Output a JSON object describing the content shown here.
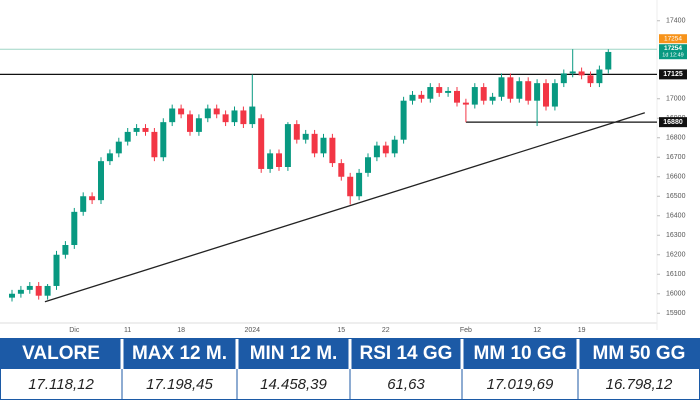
{
  "chart_data": {
    "type": "candlestick",
    "categories": [
      null,
      null,
      null,
      null,
      null,
      null,
      null,
      "Dic",
      null,
      null,
      null,
      null,
      null,
      "11",
      null,
      null,
      null,
      null,
      null,
      "18",
      null,
      null,
      null,
      null,
      null,
      null,
      null,
      "2024",
      null,
      null,
      null,
      null,
      null,
      null,
      null,
      null,
      null,
      "15",
      null,
      null,
      null,
      null,
      "22",
      null,
      null,
      null,
      null,
      null,
      null,
      null,
      null,
      "Feb",
      null,
      null,
      null,
      null,
      null,
      null,
      null,
      "12",
      null,
      null,
      null,
      null,
      "19",
      null,
      null,
      null
    ],
    "open": [
      15980,
      16000,
      16020,
      16040,
      15990,
      16040,
      16200,
      16250,
      16420,
      16500,
      16480,
      16680,
      16720,
      16780,
      16830,
      16850,
      16830,
      16700,
      16880,
      16950,
      16920,
      16830,
      16900,
      16950,
      16920,
      16880,
      16940,
      16870,
      16900,
      16640,
      16720,
      16650,
      16870,
      16790,
      16820,
      16720,
      16800,
      16670,
      16600,
      16500,
      16620,
      16700,
      16760,
      16720,
      16790,
      16990,
      17020,
      17000,
      17060,
      17030,
      17040,
      16980,
      16970,
      17060,
      16990,
      17010,
      17110,
      17000,
      17090,
      16990,
      17080,
      16960,
      17080,
      17130,
      17140,
      17120,
      17080,
      17150
    ],
    "high": [
      16020,
      16040,
      16060,
      16060,
      16050,
      16220,
      16270,
      16440,
      16520,
      16520,
      16700,
      16740,
      16800,
      16850,
      16870,
      16870,
      16850,
      16900,
      16970,
      16970,
      16940,
      16920,
      16970,
      16970,
      16940,
      16960,
      16960,
      17125,
      16920,
      16740,
      16740,
      16880,
      16890,
      16840,
      16840,
      16820,
      16820,
      16690,
      16620,
      16640,
      16720,
      16780,
      16780,
      16810,
      17010,
      17040,
      17040,
      17080,
      17080,
      17060,
      17060,
      17000,
      17080,
      17080,
      17030,
      17130,
      17130,
      17110,
      17110,
      17100,
      17100,
      17100,
      17150,
      17254,
      17160,
      17140,
      17170,
      17254
    ],
    "low": [
      15960,
      15980,
      16000,
      15970,
      15970,
      16020,
      16180,
      16230,
      16400,
      16460,
      16460,
      16660,
      16700,
      16760,
      16810,
      16810,
      16680,
      16680,
      16860,
      16900,
      16810,
      16810,
      16880,
      16900,
      16860,
      16860,
      16850,
      16850,
      16620,
      16620,
      16630,
      16630,
      16770,
      16770,
      16700,
      16700,
      16650,
      16580,
      16458,
      16480,
      16600,
      16680,
      16700,
      16700,
      16770,
      16970,
      16980,
      16980,
      17010,
      17010,
      16960,
      16880,
      16950,
      16970,
      16970,
      16990,
      16980,
      16980,
      16970,
      16860,
      16940,
      16940,
      17060,
      17110,
      17100,
      17060,
      17060,
      17130
    ],
    "close": [
      16000,
      16020,
      16040,
      15990,
      16040,
      16200,
      16250,
      16420,
      16500,
      16480,
      16680,
      16720,
      16780,
      16830,
      16850,
      16830,
      16700,
      16880,
      16950,
      16920,
      16830,
      16900,
      16950,
      16920,
      16880,
      16940,
      16870,
      16960,
      16640,
      16720,
      16650,
      16870,
      16790,
      16820,
      16720,
      16800,
      16670,
      16600,
      16500,
      16620,
      16700,
      16760,
      16720,
      16790,
      16990,
      17020,
      17000,
      17060,
      17030,
      17040,
      16980,
      16970,
      17060,
      16990,
      17010,
      17110,
      17000,
      17090,
      16990,
      17080,
      16960,
      17080,
      17130,
      17140,
      17120,
      17080,
      17150,
      17240
    ],
    "up_color": "#089981",
    "down_color": "#f23645",
    "ylim": [
      15850,
      17450
    ],
    "yticks": [
      15900,
      16000,
      16100,
      16200,
      16300,
      16400,
      16500,
      16600,
      16700,
      16800,
      16900,
      17000,
      17400
    ],
    "levels": [
      {
        "value": 17125
      },
      {
        "value": 16880,
        "from": 51
      }
    ],
    "current_price": 17254,
    "countdown": "1d 12:49",
    "trendline": {
      "start": [
        3.7,
        15959
      ],
      "end": [
        71.1,
        16928
      ]
    }
  },
  "table": {
    "headers": [
      "VALORE",
      "MAX 12 M.",
      "MIN 12 M.",
      "RSI 14 GG",
      "MM 10 GG",
      "MM 50 GG"
    ],
    "rows": [
      [
        "17.118,12",
        "17.198,45",
        "14.458,39",
        "61,63",
        "17.019,69",
        "16.798,12"
      ]
    ]
  }
}
